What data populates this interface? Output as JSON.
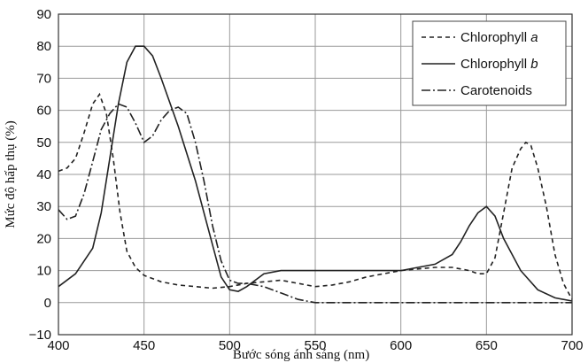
{
  "chart_data": {
    "type": "line",
    "title": "",
    "xlabel": "Bước sóng ánh sáng (nm)",
    "ylabel": "Mức độ hấp thụ (%)",
    "xlim": [
      400,
      700
    ],
    "ylim": [
      -10,
      90
    ],
    "x_ticks": [
      "400",
      "450",
      "500",
      "550",
      "600",
      "650",
      "700"
    ],
    "y_ticks": [
      "90",
      "80",
      "70",
      "60",
      "50",
      "40",
      "30",
      "20",
      "10",
      "0",
      "−10"
    ],
    "x_tick_values": [
      400,
      450,
      500,
      550,
      600,
      650,
      700
    ],
    "y_tick_values": [
      90,
      80,
      70,
      60,
      50,
      40,
      30,
      20,
      10,
      0,
      -10
    ],
    "grid": true,
    "legend_position": "top-right",
    "series": [
      {
        "name": "Chlorophyll a",
        "label_prefix": "Chlorophyll ",
        "label_italic": "a",
        "style": "dashed",
        "x": [
          400,
          405,
          410,
          415,
          420,
          424,
          428,
          432,
          436,
          440,
          445,
          450,
          460,
          470,
          480,
          490,
          500,
          510,
          520,
          530,
          540,
          550,
          560,
          570,
          580,
          590,
          600,
          610,
          620,
          630,
          640,
          645,
          650,
          655,
          660,
          665,
          670,
          673,
          676,
          680,
          685,
          690,
          695,
          700
        ],
        "y": [
          41,
          42,
          45,
          53,
          62,
          65,
          59,
          45,
          28,
          16,
          11,
          8.5,
          6.5,
          5.5,
          5,
          4.5,
          5,
          6,
          6.5,
          7,
          6,
          5,
          5.5,
          6.5,
          8,
          9,
          10,
          10.5,
          11,
          11,
          10,
          9,
          9,
          14,
          28,
          42,
          48,
          50,
          49,
          42,
          30,
          15,
          6,
          1
        ]
      },
      {
        "name": "Chlorophyll b",
        "label_prefix": "Chlorophyll ",
        "label_italic": "b",
        "style": "solid",
        "x": [
          400,
          410,
          420,
          425,
          430,
          435,
          440,
          445,
          450,
          455,
          460,
          470,
          480,
          490,
          495,
          500,
          505,
          510,
          520,
          530,
          540,
          560,
          580,
          600,
          620,
          630,
          635,
          640,
          645,
          650,
          655,
          660,
          670,
          680,
          690,
          700
        ],
        "y": [
          5,
          9,
          17,
          28,
          45,
          62,
          75,
          80,
          80,
          77,
          70,
          55,
          38,
          18,
          8,
          4,
          3.5,
          5,
          9,
          10,
          10,
          10,
          10,
          10,
          12,
          15,
          19,
          24,
          28,
          30,
          27,
          20,
          10,
          4,
          1.5,
          0.5
        ]
      },
      {
        "name": "Carotenoids",
        "label_prefix": "Carotenoids",
        "label_italic": "",
        "style": "dashdot",
        "x": [
          400,
          405,
          410,
          415,
          420,
          425,
          430,
          435,
          440,
          445,
          450,
          455,
          460,
          465,
          470,
          475,
          480,
          485,
          490,
          495,
          500,
          505,
          510,
          520,
          530,
          540,
          550,
          560,
          600,
          650,
          700
        ],
        "y": [
          29,
          26,
          27,
          34,
          44,
          54,
          59,
          62,
          61,
          56,
          50,
          52,
          57,
          60,
          61,
          59,
          50,
          38,
          24,
          13,
          7,
          6,
          6,
          5,
          3,
          1,
          0,
          0,
          0,
          0,
          0
        ]
      }
    ]
  }
}
